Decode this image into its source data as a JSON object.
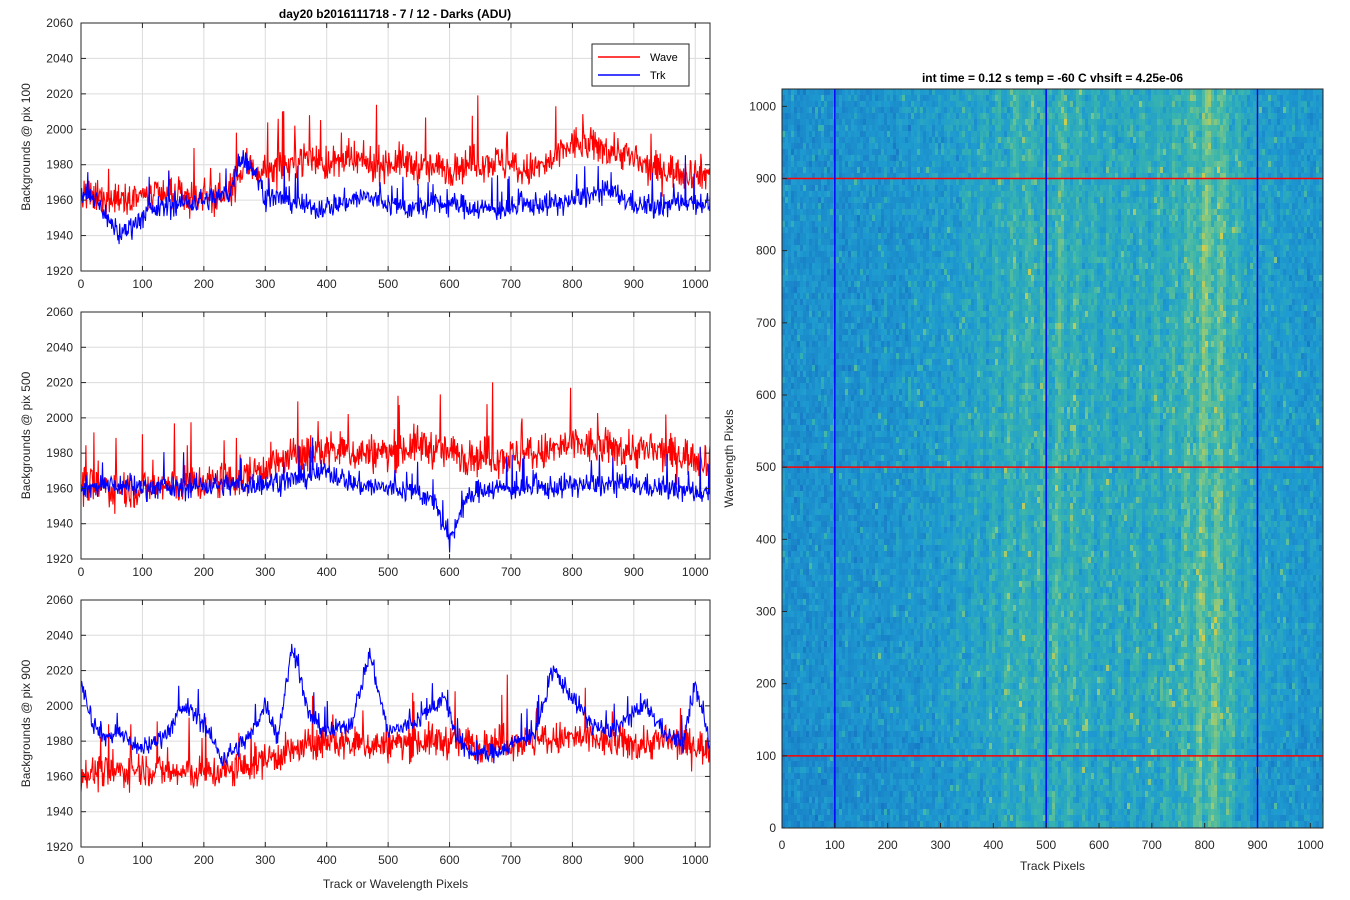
{
  "figure": {
    "suptitle": "day20 b2016111718 - 7 / 12 - Darks (ADU)",
    "legend": {
      "wave": "Wave",
      "trk": "Trk"
    },
    "colors": {
      "wave": "#ff0000",
      "trk": "#0000ff",
      "grid": "#dcdcdc",
      "axis": "#262626"
    }
  },
  "chart_data": [
    {
      "type": "line",
      "ylabel": "Backgrounds @ pix 100",
      "xlabel": "",
      "xlim": [
        0,
        1024
      ],
      "ylim": [
        1920,
        2060
      ],
      "xticks": [
        0,
        100,
        200,
        300,
        400,
        500,
        600,
        700,
        800,
        900,
        1000
      ],
      "yticks": [
        1920,
        1940,
        1960,
        1980,
        2000,
        2020,
        2040,
        2060
      ],
      "grid": true,
      "legend": "top-right",
      "series": [
        {
          "name": "Wave",
          "color": "#ff0000",
          "x": [
            0,
            40,
            80,
            120,
            160,
            200,
            240,
            270,
            300,
            340,
            370,
            400,
            440,
            480,
            520,
            560,
            600,
            640,
            680,
            720,
            760,
            800,
            840,
            880,
            920,
            960,
            1000,
            1024
          ],
          "y": [
            1962,
            1960,
            1963,
            1962,
            1961,
            1963,
            1962,
            1980,
            1975,
            1980,
            1985,
            1980,
            1982,
            1980,
            1982,
            1978,
            1978,
            1981,
            1982,
            1976,
            1980,
            1992,
            1990,
            1987,
            1978,
            1977,
            1975,
            1975
          ]
        },
        {
          "name": "Trk",
          "color": "#0000ff",
          "x": [
            0,
            30,
            60,
            90,
            120,
            160,
            200,
            240,
            260,
            280,
            300,
            340,
            380,
            420,
            460,
            500,
            540,
            580,
            620,
            660,
            700,
            740,
            780,
            820,
            860,
            900,
            940,
            980,
            1024
          ],
          "y": [
            1965,
            1958,
            1940,
            1948,
            1955,
            1958,
            1960,
            1963,
            1985,
            1978,
            1962,
            1960,
            1955,
            1958,
            1962,
            1958,
            1955,
            1958,
            1957,
            1955,
            1955,
            1958,
            1958,
            1962,
            1965,
            1958,
            1955,
            1960,
            1958
          ]
        }
      ]
    },
    {
      "type": "line",
      "ylabel": "Backgrounds @ pix 500",
      "xlabel": "",
      "xlim": [
        0,
        1024
      ],
      "ylim": [
        1920,
        2060
      ],
      "xticks": [
        0,
        100,
        200,
        300,
        400,
        500,
        600,
        700,
        800,
        900,
        1000
      ],
      "yticks": [
        1920,
        1940,
        1960,
        1980,
        2000,
        2020,
        2040,
        2060
      ],
      "grid": true,
      "series": [
        {
          "name": "Wave",
          "color": "#ff0000",
          "x": [
            0,
            50,
            100,
            150,
            200,
            250,
            300,
            350,
            400,
            450,
            500,
            550,
            600,
            650,
            700,
            750,
            800,
            850,
            900,
            950,
            1000,
            1024
          ],
          "y": [
            1962,
            1960,
            1960,
            1962,
            1963,
            1965,
            1972,
            1978,
            1982,
            1980,
            1980,
            1985,
            1980,
            1978,
            1978,
            1980,
            1985,
            1983,
            1982,
            1980,
            1978,
            1976
          ]
        },
        {
          "name": "Trk",
          "color": "#0000ff",
          "x": [
            0,
            50,
            100,
            150,
            200,
            250,
            300,
            350,
            400,
            450,
            500,
            550,
            580,
            600,
            620,
            650,
            700,
            750,
            800,
            850,
            900,
            950,
            1000,
            1024
          ],
          "y": [
            1960,
            1962,
            1961,
            1960,
            1962,
            1962,
            1963,
            1965,
            1970,
            1962,
            1960,
            1958,
            1950,
            1928,
            1950,
            1960,
            1960,
            1960,
            1962,
            1962,
            1962,
            1960,
            1958,
            1958
          ]
        }
      ]
    },
    {
      "type": "line",
      "ylabel": "Backgrounds @ pix 900",
      "xlabel": "Track or Wavelength Pixels",
      "xlim": [
        0,
        1024
      ],
      "ylim": [
        1920,
        2060
      ],
      "xticks": [
        0,
        100,
        200,
        300,
        400,
        500,
        600,
        700,
        800,
        900,
        1000
      ],
      "yticks": [
        1920,
        1940,
        1960,
        1980,
        2000,
        2020,
        2040,
        2060
      ],
      "grid": true,
      "series": [
        {
          "name": "Wave",
          "color": "#ff0000",
          "x": [
            0,
            50,
            100,
            150,
            200,
            250,
            300,
            350,
            400,
            450,
            500,
            550,
            600,
            650,
            700,
            750,
            800,
            850,
            900,
            950,
            1000,
            1024
          ],
          "y": [
            1962,
            1962,
            1965,
            1962,
            1962,
            1963,
            1970,
            1975,
            1980,
            1978,
            1978,
            1980,
            1980,
            1978,
            1980,
            1980,
            1982,
            1980,
            1978,
            1980,
            1978,
            1975
          ]
        },
        {
          "name": "Trk",
          "color": "#0000ff",
          "x": [
            0,
            20,
            40,
            60,
            100,
            140,
            170,
            200,
            230,
            260,
            280,
            300,
            320,
            345,
            370,
            400,
            440,
            470,
            500,
            540,
            570,
            590,
            620,
            660,
            700,
            740,
            770,
            800,
            830,
            860,
            900,
            920,
            950,
            980,
            1000,
            1024
          ],
          "y": [
            2015,
            1990,
            1982,
            1985,
            1975,
            1985,
            2000,
            1990,
            1970,
            1978,
            1985,
            2002,
            1982,
            2035,
            1995,
            1985,
            1990,
            2030,
            1985,
            1990,
            1998,
            2005,
            1975,
            1972,
            1978,
            1985,
            2020,
            2005,
            1990,
            1985,
            1995,
            2000,
            1985,
            1978,
            2012,
            1978
          ]
        }
      ]
    },
    {
      "type": "heatmap",
      "title": "int time = 0.12 s    temp = -60 C    vhsift = 4.25e-06",
      "xlabel": "Track Pixels",
      "ylabel": "Wavelength Pixels",
      "xlim": [
        0,
        1024
      ],
      "ylim": [
        0,
        1024
      ],
      "xticks": [
        0,
        100,
        200,
        300,
        400,
        500,
        600,
        700,
        800,
        900,
        1000
      ],
      "yticks": [
        0,
        100,
        200,
        300,
        400,
        500,
        600,
        700,
        800,
        900,
        1000
      ],
      "colormap": "parula",
      "colors": {
        "base": "#1e9bd0",
        "bright": "#7ac68a",
        "brightest": "#c5cc55",
        "dark": "#1673c4"
      },
      "column_brightness": {
        "x": [
          0,
          100,
          200,
          300,
          400,
          440,
          500,
          520,
          560,
          620,
          680,
          720,
          760,
          790,
          810,
          840,
          870,
          900,
          940,
          980,
          1024
        ],
        "v": [
          0.1,
          0.12,
          0.15,
          0.25,
          0.4,
          0.5,
          0.48,
          0.55,
          0.45,
          0.4,
          0.42,
          0.45,
          0.55,
          0.7,
          0.72,
          0.6,
          0.4,
          0.3,
          0.25,
          0.2,
          0.18
        ]
      },
      "overlay_lines": [
        {
          "orientation": "horizontal",
          "value": 100,
          "color": "#ff0000"
        },
        {
          "orientation": "horizontal",
          "value": 500,
          "color": "#ff0000"
        },
        {
          "orientation": "horizontal",
          "value": 900,
          "color": "#ff0000"
        },
        {
          "orientation": "vertical",
          "value": 100,
          "color": "#0000ff"
        },
        {
          "orientation": "vertical",
          "value": 500,
          "color": "#0000ff"
        },
        {
          "orientation": "vertical",
          "value": 900,
          "color": "#0000ff"
        }
      ]
    }
  ]
}
